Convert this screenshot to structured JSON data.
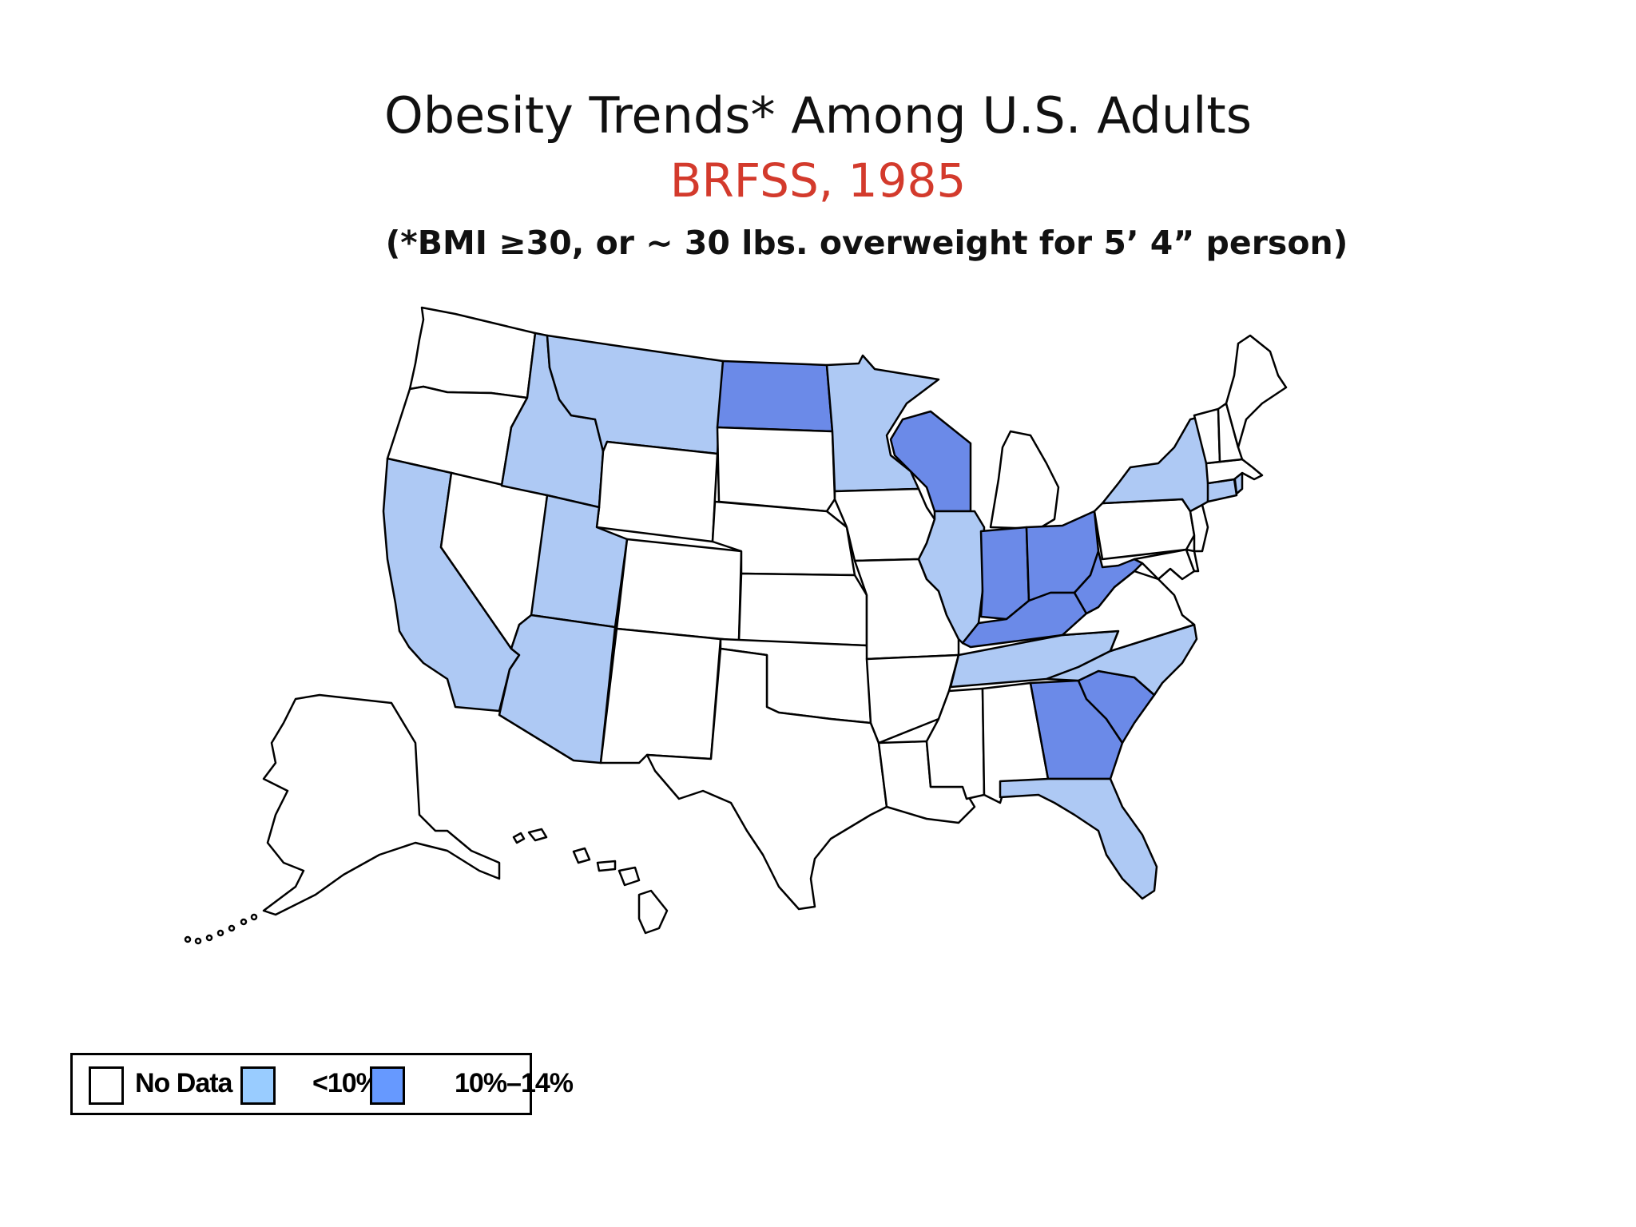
{
  "title": "Obesity Trends* Among U.S. Adults",
  "subtitle": "BRFSS, 1985",
  "note": "(*BMI ≥30, or ~ 30 lbs. overweight for 5’ 4” person)",
  "colors": {
    "subtitle": "#d33a2c",
    "no_data": "#ffffff",
    "lt10": "#aec9f4",
    "p10_14": "#6b8ae8",
    "border": "#000000"
  },
  "legend": [
    {
      "key": "no_data",
      "label": "No Data",
      "color": "#ffffff"
    },
    {
      "key": "lt10",
      "label": "<10%",
      "color": "#99ccff"
    },
    {
      "key": "p10_14",
      "label": "10%–14%",
      "color": "#6699ff"
    }
  ],
  "chart_data": {
    "type": "choropleth",
    "title": "Obesity Trends* Among U.S. Adults",
    "subtitle": "BRFSS, 1985",
    "categories": [
      "No Data",
      "<10%",
      "10%–14%"
    ],
    "states": {
      "WA": "No Data",
      "OR": "No Data",
      "CA": "<10%",
      "NV": "No Data",
      "ID": "<10%",
      "MT": "<10%",
      "WY": "No Data",
      "UT": "<10%",
      "AZ": "<10%",
      "CO": "No Data",
      "NM": "No Data",
      "ND": "10%–14%",
      "SD": "No Data",
      "NE": "No Data",
      "KS": "No Data",
      "OK": "No Data",
      "TX": "No Data",
      "MN": "<10%",
      "IA": "No Data",
      "MO": "No Data",
      "AR": "No Data",
      "LA": "No Data",
      "WI": "10%–14%",
      "IL": "<10%",
      "MI": "No Data",
      "IN": "10%–14%",
      "OH": "10%–14%",
      "KY": "10%–14%",
      "TN": "<10%",
      "MS": "No Data",
      "AL": "No Data",
      "GA": "10%–14%",
      "FL": "<10%",
      "SC": "10%–14%",
      "NC": "<10%",
      "VA": "No Data",
      "WV": "10%–14%",
      "PA": "No Data",
      "NY": "<10%",
      "NJ": "No Data",
      "DE": "No Data",
      "MD": "No Data",
      "CT": "<10%",
      "RI": "<10%",
      "MA": "No Data",
      "VT": "No Data",
      "NH": "No Data",
      "ME": "No Data",
      "AK": "No Data",
      "HI": "No Data"
    }
  }
}
